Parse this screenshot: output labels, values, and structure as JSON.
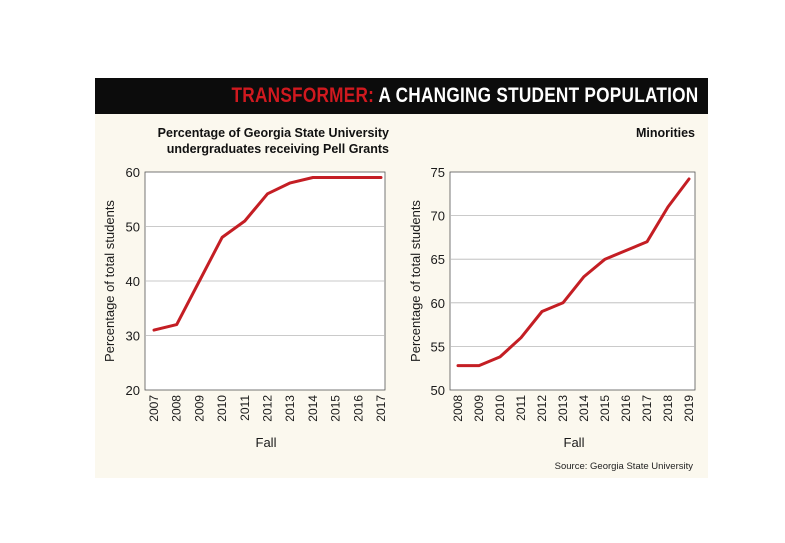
{
  "banner": {
    "keyword": "TRANSFORMER:",
    "rest": " A CHANGING STUDENT POPULATION"
  },
  "source": "Source: Georgia State University",
  "colors": {
    "accent": "#c41e24",
    "banner_bg": "#0c0c0c",
    "panel_bg": "#fbf8ee"
  },
  "chart_data": [
    {
      "type": "line",
      "title_lines": [
        "Percentage of Georgia State University",
        "undergraduates receiving Pell Grants"
      ],
      "xlabel": "Fall",
      "ylabel": "Percentage of total students",
      "categories": [
        "2007",
        "2008",
        "2009",
        "2010",
        "2011",
        "2012",
        "2013",
        "2014",
        "2015",
        "2016",
        "2017"
      ],
      "values": [
        31,
        32,
        40,
        48,
        51,
        56,
        58,
        59,
        59,
        59,
        59
      ],
      "ylim": [
        20,
        60
      ],
      "yticks": [
        20,
        30,
        40,
        50,
        60
      ],
      "grid": true
    },
    {
      "type": "line",
      "title_lines": [
        "Minorities"
      ],
      "xlabel": "Fall",
      "ylabel": "Percentage of total students",
      "categories": [
        "2008",
        "2009",
        "2010",
        "2011",
        "2012",
        "2013",
        "2014",
        "2015",
        "2016",
        "2017",
        "2018",
        "2019"
      ],
      "values": [
        52.8,
        52.8,
        53.8,
        56,
        59,
        60,
        63,
        65,
        66,
        67,
        71,
        74.2
      ],
      "ylim": [
        50,
        75
      ],
      "yticks": [
        50,
        55,
        60,
        65,
        70,
        75
      ],
      "grid": true
    }
  ]
}
